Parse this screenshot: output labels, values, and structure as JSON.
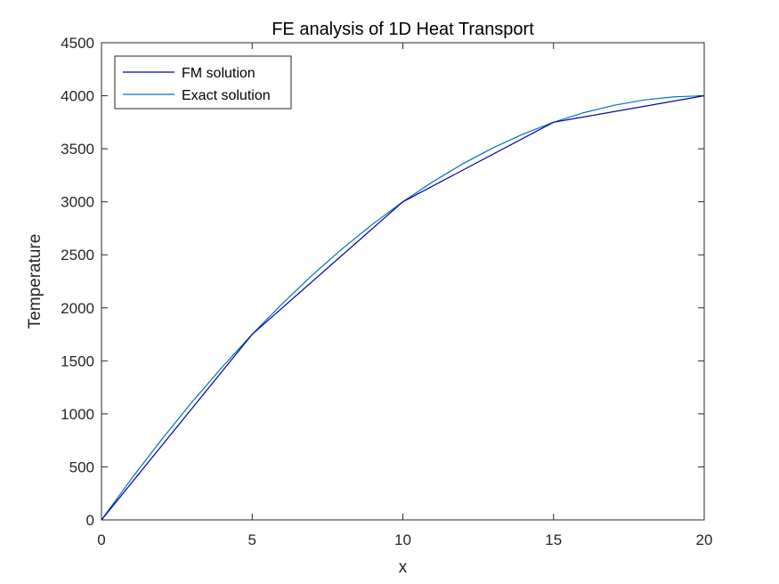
{
  "chart_data": {
    "type": "line",
    "title": "FE analysis of 1D Heat Transport",
    "xlabel": "x",
    "ylabel": "Temperature",
    "xlim": [
      0,
      20
    ],
    "ylim": [
      0,
      4500
    ],
    "x_ticks": [
      0,
      5,
      10,
      15,
      20
    ],
    "y_ticks": [
      0,
      500,
      1000,
      1500,
      2000,
      2500,
      3000,
      3500,
      4000,
      4500
    ],
    "grid": false,
    "legend_position": "top-left",
    "series": [
      {
        "name": "FM solution",
        "color": "#0000a0",
        "x": [
          0,
          5,
          10,
          15,
          20
        ],
        "y": [
          0,
          1750,
          3000,
          3750,
          4000
        ]
      },
      {
        "name": "Exact solution",
        "color": "#0072bd",
        "x": [
          0,
          1,
          2,
          3,
          4,
          5,
          6,
          7,
          8,
          9,
          10,
          11,
          12,
          13,
          14,
          15,
          16,
          17,
          18,
          19,
          20
        ],
        "y": [
          0,
          390,
          760,
          1110,
          1440,
          1750,
          2040,
          2310,
          2560,
          2790,
          3000,
          3190,
          3360,
          3510,
          3640,
          3750,
          3840,
          3910,
          3960,
          3990,
          4000
        ]
      }
    ]
  }
}
